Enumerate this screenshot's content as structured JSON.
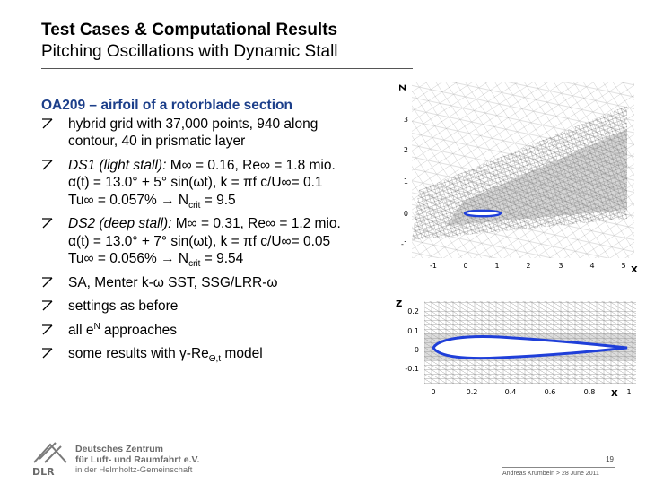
{
  "header": {
    "title": "Test Cases & Computational Results",
    "subtitle": "Pitching Oscillations with Dynamic Stall"
  },
  "content": {
    "heading": "OA209 – airfoil of a rotorblade section",
    "grid_line1": "hybrid grid with 37,000 points, 940 along",
    "grid_line2": "contour, 40 in prismatic layer",
    "ds1_label": "DS1 (light stall):",
    "ds1_flow": "M∞ = 0.16, Re∞ = 1.8 mio.",
    "ds1_alpha": "α(t) = 13.0° + 5° sin(ωt), k = πf c/U∞= 0.1",
    "ds1_tu": "Tu∞ = 0.057% → N",
    "ds1_ncrit": "crit",
    "ds1_ncrit_value": " = 9.5",
    "ds2_label": "DS2 (deep stall):",
    "ds2_flow": "M∞ = 0.31, Re∞ = 1.2 mio.",
    "ds2_alpha": "α(t) = 13.0° + 7° sin(ωt), k = πf c/U∞= 0.05",
    "ds2_tu": "Tu∞ = 0.056% → N",
    "ds2_ncrit": "crit",
    "ds2_ncrit_value": " = 9.54",
    "models": "SA, Menter k-ω SST, SSG/LRR-ω",
    "settings": "settings as before",
    "en_pre": "all e",
    "en_sup": "N",
    "en_post": " approaches",
    "gamma_pre": "some results with γ-Re",
    "gamma_sub": "Θ,t",
    "gamma_post": " model"
  },
  "figure_top": {
    "axis_z": "Z",
    "axis_x": "X",
    "y_ticks": [
      "3",
      "2",
      "1",
      "0",
      "-1"
    ],
    "x_ticks": [
      "-1",
      "0",
      "1",
      "2",
      "3",
      "4",
      "5"
    ]
  },
  "figure_bottom": {
    "axis_z": "Z",
    "axis_x": "X",
    "y_ticks": [
      "0.2",
      "0.1",
      "0",
      "-0.1"
    ],
    "x_ticks": [
      "0",
      "0.2",
      "0.4",
      "0.6",
      "0.8",
      "1"
    ]
  },
  "footer": {
    "org_line1": "Deutsches Zentrum",
    "org_line2": "für Luft- und Raumfahrt e.V.",
    "org_line3": "in der Helmholtz-Gemeinschaft",
    "logo_text": "DLR",
    "page": "19",
    "meta": "Andreas Krumbein > 28 June 2011"
  },
  "colors": {
    "heading": "#1c3f8a",
    "airfoil": "#1f3fd9"
  }
}
